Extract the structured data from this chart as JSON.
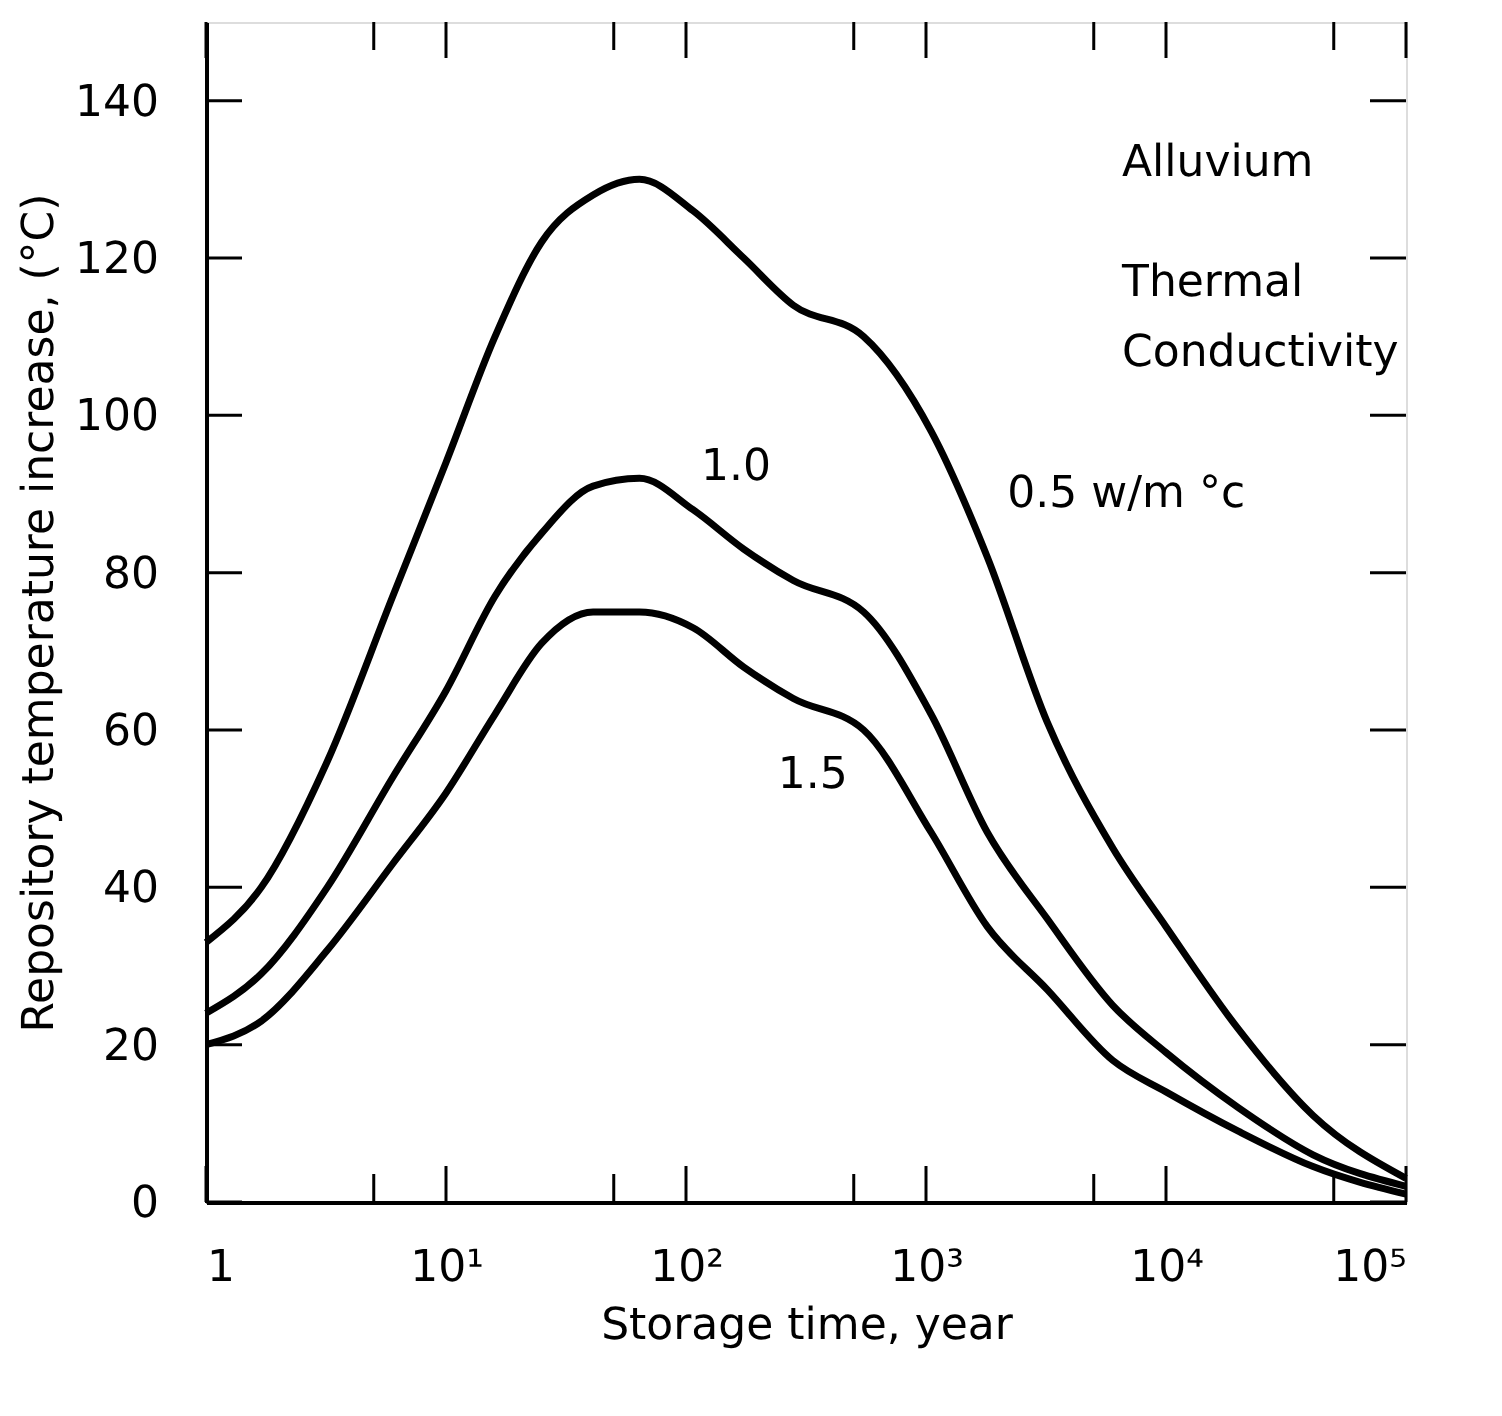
{
  "chart_data": {
    "type": "line",
    "xlabel": "Storage time, year",
    "ylabel": "Repository temperature increase, (°C)",
    "log": "x",
    "xlim": [
      1,
      100000
    ],
    "ylim": [
      0,
      150
    ],
    "xticks": [
      {
        "value": 1,
        "label": "1"
      },
      {
        "value": 5,
        "label": null
      },
      {
        "value": 10,
        "label": "10¹"
      },
      {
        "value": 50,
        "label": null
      },
      {
        "value": 100,
        "label": "10²"
      },
      {
        "value": 500,
        "label": null
      },
      {
        "value": 1000,
        "label": "10³"
      },
      {
        "value": 5000,
        "label": null
      },
      {
        "value": 10000,
        "label": "10⁴"
      },
      {
        "value": 50000,
        "label": null
      },
      {
        "value": 100000,
        "label": "10⁵"
      }
    ],
    "yticks": [
      0,
      20,
      40,
      60,
      80,
      100,
      120,
      140
    ],
    "x": [
      1,
      1.7,
      3.2,
      6,
      10,
      16,
      25,
      41,
      64,
      107,
      174,
      280,
      550,
      1050,
      1800,
      3200,
      6000,
      10000,
      20000,
      41000,
      100000
    ],
    "series": [
      {
        "name": "0.5 w/m °c",
        "color": "#000000",
        "values": [
          33,
          40,
          56,
          77,
          94,
          110,
          122,
          128,
          130,
          126,
          120,
          114,
          110,
          98,
          82,
          61,
          45,
          35,
          22,
          11,
          3
        ]
      },
      {
        "name": "1.0",
        "color": "#000000",
        "values": [
          24,
          29,
          40,
          54,
          65,
          77,
          85,
          91,
          92,
          88,
          83,
          79,
          75,
          62,
          47,
          36,
          25,
          19,
          12,
          6,
          2
        ]
      },
      {
        "name": "1.5",
        "color": "#000000",
        "values": [
          20,
          23,
          32,
          43,
          52,
          62,
          71,
          75,
          75,
          73,
          68,
          64,
          60,
          47,
          35,
          27,
          18,
          14,
          9,
          4.5,
          1
        ]
      }
    ],
    "annotations": [
      "Alluvium",
      "Thermal",
      "Conductivity"
    ],
    "grid": false,
    "legend": false,
    "marker": "none",
    "line_style": "solid"
  }
}
